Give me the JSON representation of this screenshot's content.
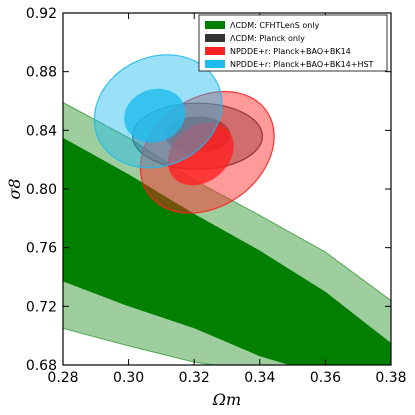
{
  "chart_data": {
    "type": "contour",
    "xlabel": "Ωm",
    "ylabel": "σ8",
    "xlim": [
      0.28,
      0.38
    ],
    "ylim": [
      0.68,
      0.92
    ],
    "x_ticks": [
      "0.28",
      "0.30",
      "0.32",
      "0.34",
      "0.36",
      "0.38"
    ],
    "y_ticks": [
      "0.68",
      "0.72",
      "0.76",
      "0.80",
      "0.84",
      "0.88",
      "0.92"
    ],
    "legend_position": "top-right",
    "legend": [
      {
        "label": "ΛCDM: CFHTLenS only",
        "color": "#007f00"
      },
      {
        "label": "ΛCDM: Planck only",
        "color": "#333333"
      },
      {
        "label": "NPDDE+r: Planck+BAO+BK14",
        "color": "#ff2020"
      },
      {
        "label": "NPDDE+r: Planck+BAO+BK14+HST",
        "color": "#1ebbee"
      }
    ],
    "series": [
      {
        "name": "ΛCDM: CFHTLenS only",
        "color": "#007f00",
        "band_95": {
          "upper": [
            [
              0.28,
              0.859
            ],
            [
              0.3,
              0.835
            ],
            [
              0.32,
              0.806
            ],
            [
              0.34,
              0.782
            ],
            [
              0.36,
              0.757
            ],
            [
              0.38,
              0.724
            ]
          ],
          "lower": [
            [
              0.28,
              0.705
            ],
            [
              0.3,
              0.693
            ],
            [
              0.32,
              0.682
            ],
            [
              0.3262,
              0.68
            ]
          ]
        },
        "band_68": {
          "upper": [
            [
              0.28,
              0.835
            ],
            [
              0.3,
              0.81
            ],
            [
              0.32,
              0.783
            ],
            [
              0.34,
              0.758
            ],
            [
              0.36,
              0.73
            ],
            [
              0.38,
              0.695
            ]
          ],
          "lower": [
            [
              0.28,
              0.737
            ],
            [
              0.3,
              0.72
            ],
            [
              0.32,
              0.705
            ],
            [
              0.34,
              0.686
            ],
            [
              0.349,
              0.68
            ]
          ]
        }
      },
      {
        "name": "ΛCDM: Planck only",
        "color": "#333333",
        "ellipses": [
          {
            "level": "95%",
            "center": [
              0.321,
              0.836
            ],
            "rx": 0.0198,
            "ry": 0.0225,
            "angle_deg": 0
          },
          {
            "level": "68%",
            "center": [
              0.321,
              0.837
            ],
            "rx": 0.01,
            "ry": 0.0125,
            "angle_deg": 0
          }
        ]
      },
      {
        "name": "NPDDE+r: Planck+BAO+BK14",
        "color": "#ff2020",
        "ellipses": [
          {
            "level": "95%",
            "center": [
              0.324,
              0.825
            ],
            "rx": 0.022,
            "ry": 0.037,
            "angle_deg": -35
          },
          {
            "level": "68%",
            "center": [
              0.322,
              0.824
            ],
            "rx": 0.011,
            "ry": 0.019,
            "angle_deg": -40
          }
        ]
      },
      {
        "name": "NPDDE+r: Planck+BAO+BK14+HST",
        "color": "#1ebbee",
        "ellipses": [
          {
            "level": "95%",
            "center": [
              0.309,
              0.853
            ],
            "rx": 0.02,
            "ry": 0.037,
            "angle_deg": -25
          },
          {
            "level": "68%",
            "center": [
              0.308,
              0.85
            ],
            "rx": 0.0095,
            "ry": 0.018,
            "angle_deg": -20
          }
        ]
      }
    ]
  }
}
